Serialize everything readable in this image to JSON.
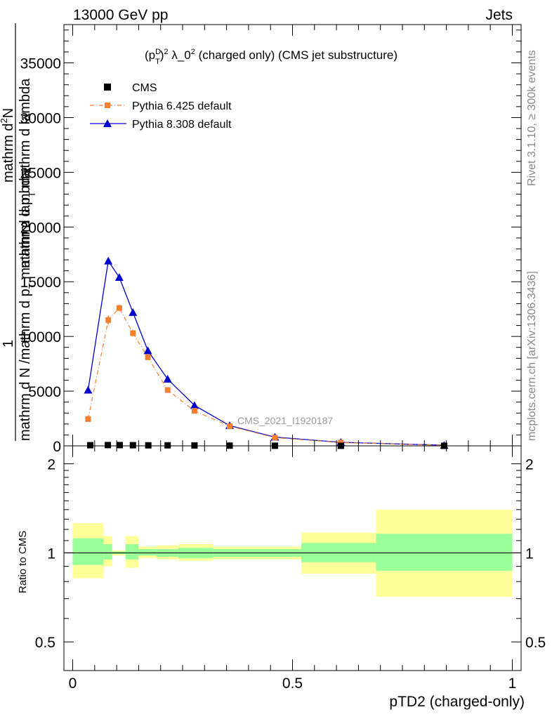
{
  "header": {
    "energy": "13000 GeV pp",
    "category": "Jets"
  },
  "side_labels": {
    "rivet": "Rivet 3.1.10, ≥ 300k events",
    "mcplots": "mcplots.cern.ch [arXiv:1306.3436]"
  },
  "colors": {
    "cms": "#000000",
    "pythia6": "#f47f2f",
    "pythia8": "#0000cc",
    "band_inner": "#99ff99",
    "band_outer": "#ffff99"
  },
  "chart_data": [
    {
      "type": "line",
      "title_parts": {
        "p": "(p",
        "sup1": "D",
        "sub1": "T",
        "close": ")",
        "sup2": "2",
        "rest": " λ_0",
        "sup3": "2",
        "tail": " (charged only) (CMS jet substructure)"
      },
      "ylabel_parts": {
        "num_left": "1",
        "den_left": "mathrm d N /mathrm d p",
        "den_left_sub": "T",
        "den_left_tail": " mathrm d lambda",
        "num_right": "mathrm d",
        "num_right_sup": "2",
        "num_right_tail": "N",
        "den_right": "mathrm d p",
        "den_right_sub": "T",
        "den_right_tail": " mathrm d lambda"
      },
      "watermark": "CMS_2021_I1920187",
      "xlim": [
        -0.02,
        1.02
      ],
      "ylim": [
        0,
        38500
      ],
      "yticks": [
        0,
        5000,
        10000,
        15000,
        20000,
        25000,
        30000,
        35000
      ],
      "ytick_labels": [
        "0",
        "5000",
        "10000",
        "15000",
        "20000",
        "25000",
        "30000",
        "35000"
      ],
      "legend_position": "top-left",
      "series": [
        {
          "name": "CMS",
          "style": "square-markers",
          "x": [
            0.04,
            0.08,
            0.107,
            0.137,
            0.172,
            0.216,
            0.277,
            0.357,
            0.46,
            0.61,
            0.845
          ],
          "y": [
            60,
            70,
            70,
            60,
            50,
            50,
            40,
            20,
            10,
            5,
            2
          ]
        },
        {
          "name": "Pythia 6.425 default",
          "style": "dash-dot-orange-squares",
          "x": [
            0.035,
            0.081,
            0.106,
            0.137,
            0.171,
            0.216,
            0.277,
            0.357,
            0.46,
            0.61,
            0.845
          ],
          "y": [
            2450,
            11500,
            12600,
            10300,
            8100,
            5100,
            3200,
            1800,
            750,
            300,
            50
          ],
          "yerr": [
            250,
            400,
            300,
            300,
            250,
            200,
            150,
            100,
            50,
            30,
            10
          ]
        },
        {
          "name": "Pythia 8.308 default",
          "style": "solid-blue-triangles",
          "x": [
            0.035,
            0.081,
            0.106,
            0.137,
            0.171,
            0.216,
            0.277,
            0.357,
            0.46,
            0.61,
            0.845
          ],
          "y": [
            5100,
            16900,
            15400,
            12200,
            8700,
            6100,
            3700,
            1850,
            800,
            320,
            60
          ]
        }
      ]
    },
    {
      "type": "area",
      "ylabel": "Ratio to CMS",
      "xlabel": "pTD2 (charged-only)",
      "xlim": [
        -0.02,
        1.02
      ],
      "ylim": [
        0.4,
        2.3
      ],
      "yscale": "log",
      "yticks": [
        0.5,
        1,
        2
      ],
      "ytick_labels": [
        "0.5",
        "1",
        "2"
      ],
      "xticks": [
        0,
        0.5,
        1
      ],
      "xtick_labels": [
        "0",
        "0.5",
        "1"
      ],
      "bands": [
        {
          "x0": 0.0,
          "x1": 0.07,
          "inner": [
            0.91,
            1.12
          ],
          "outer": [
            0.82,
            1.26
          ]
        },
        {
          "x0": 0.07,
          "x1": 0.09,
          "inner": [
            0.95,
            1.07
          ],
          "outer": [
            0.9,
            1.14
          ]
        },
        {
          "x0": 0.09,
          "x1": 0.12,
          "inner": [
            0.99,
            1.01
          ],
          "outer": [
            0.98,
            1.02
          ]
        },
        {
          "x0": 0.12,
          "x1": 0.15,
          "inner": [
            0.95,
            1.07
          ],
          "outer": [
            0.89,
            1.14
          ]
        },
        {
          "x0": 0.15,
          "x1": 0.19,
          "inner": [
            0.98,
            1.03
          ],
          "outer": [
            0.96,
            1.05
          ]
        },
        {
          "x0": 0.19,
          "x1": 0.24,
          "inner": [
            0.97,
            1.03
          ],
          "outer": [
            0.95,
            1.06
          ]
        },
        {
          "x0": 0.24,
          "x1": 0.32,
          "inner": [
            0.96,
            1.04
          ],
          "outer": [
            0.94,
            1.07
          ]
        },
        {
          "x0": 0.32,
          "x1": 0.52,
          "inner": [
            0.97,
            1.03
          ],
          "outer": [
            0.95,
            1.05
          ]
        },
        {
          "x0": 0.52,
          "x1": 0.69,
          "inner": [
            0.93,
            1.08
          ],
          "outer": [
            0.85,
            1.17
          ]
        },
        {
          "x0": 0.69,
          "x1": 1.0,
          "inner": [
            0.87,
            1.16
          ],
          "outer": [
            0.71,
            1.4
          ]
        }
      ]
    }
  ]
}
